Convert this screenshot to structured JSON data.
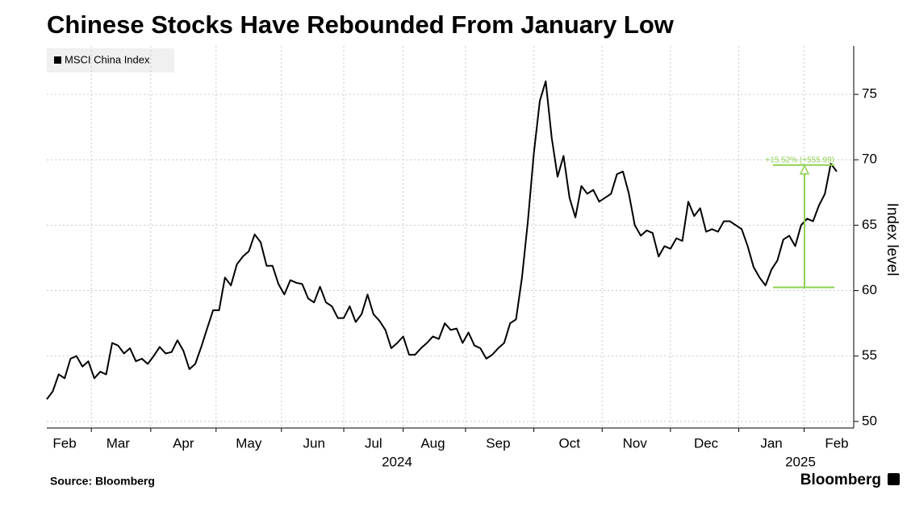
{
  "chart_data": {
    "type": "line",
    "title": "Chinese Stocks Have Rebounded From January Low",
    "y_label": "Index level",
    "source": "Source: Bloomberg",
    "brand": "Bloomberg",
    "year_labels": [
      "2024",
      "2025"
    ],
    "legend": "top-left",
    "grid": true,
    "categories": [
      null,
      null,
      null,
      "Feb",
      null,
      null,
      null,
      null,
      null,
      null,
      null,
      null,
      "Mar",
      null,
      null,
      null,
      null,
      null,
      null,
      null,
      null,
      null,
      null,
      "Apr",
      null,
      null,
      null,
      null,
      null,
      null,
      null,
      null,
      null,
      null,
      "May",
      null,
      null,
      null,
      null,
      null,
      null,
      null,
      null,
      null,
      null,
      "Jun",
      null,
      null,
      null,
      null,
      null,
      null,
      null,
      null,
      null,
      "Jul",
      null,
      null,
      null,
      null,
      null,
      null,
      null,
      null,
      null,
      "Aug",
      null,
      null,
      null,
      null,
      null,
      null,
      null,
      null,
      null,
      null,
      "Sep",
      null,
      null,
      null,
      null,
      null,
      null,
      null,
      null,
      null,
      null,
      null,
      "Oct",
      null,
      null,
      null,
      null,
      null,
      null,
      null,
      null,
      null,
      null,
      "Nov",
      null,
      null,
      null,
      null,
      null,
      null,
      null,
      null,
      null,
      null,
      null,
      "Dec",
      null,
      null,
      null,
      null,
      null,
      null,
      null,
      null,
      null,
      null,
      "Jan",
      null,
      null,
      null,
      null,
      null,
      null,
      null,
      null,
      null,
      null,
      "Feb"
    ],
    "series": [
      {
        "name": "MSCI China Index",
        "color": "#000000",
        "values": [
          51.7,
          52.3,
          53.6,
          53.3,
          54.8,
          55.0,
          54.2,
          54.6,
          53.3,
          53.8,
          53.6,
          56.0,
          55.8,
          55.2,
          55.6,
          54.6,
          54.8,
          54.4,
          55.0,
          55.7,
          55.2,
          55.3,
          56.2,
          55.4,
          54.0,
          54.4,
          55.7,
          57.1,
          58.5,
          58.5,
          61.0,
          60.4,
          62.0,
          62.6,
          63.0,
          64.3,
          63.7,
          61.9,
          61.9,
          60.5,
          59.7,
          60.8,
          60.6,
          60.5,
          59.4,
          59.1,
          60.3,
          59.1,
          58.8,
          57.9,
          57.9,
          58.8,
          57.6,
          58.2,
          59.7,
          58.2,
          57.7,
          57.0,
          55.6,
          56.0,
          56.5,
          55.1,
          55.1,
          55.6,
          56.0,
          56.5,
          56.3,
          57.5,
          57.0,
          57.1,
          56.0,
          56.8,
          55.8,
          55.6,
          54.8,
          55.1,
          55.6,
          56.0,
          57.5,
          57.8,
          61.0,
          65.3,
          70.5,
          74.5,
          76.0,
          71.7,
          68.7,
          70.3,
          67.1,
          65.6,
          68.0,
          67.4,
          67.7,
          66.8,
          67.1,
          67.4,
          68.9,
          69.1,
          67.4,
          65.0,
          64.2,
          64.6,
          64.4,
          62.6,
          63.4,
          63.2,
          64.0,
          63.8,
          66.8,
          65.7,
          66.3,
          64.5,
          64.7,
          64.5,
          65.3,
          65.3,
          65.0,
          64.7,
          63.4,
          61.8,
          61.0,
          60.4,
          61.6,
          62.3,
          63.9,
          64.2,
          63.4,
          65.0,
          65.5,
          65.3,
          66.5,
          67.4,
          69.7,
          69.1
        ]
      }
    ],
    "ylim": [
      49.5,
      78.7
    ],
    "yticks": [
      50,
      55,
      60,
      65,
      70,
      75
    ],
    "annotation": {
      "text": "+15.52% (+555.99)",
      "low": 60.25,
      "high": 69.6,
      "color": "#8fd14f"
    }
  }
}
